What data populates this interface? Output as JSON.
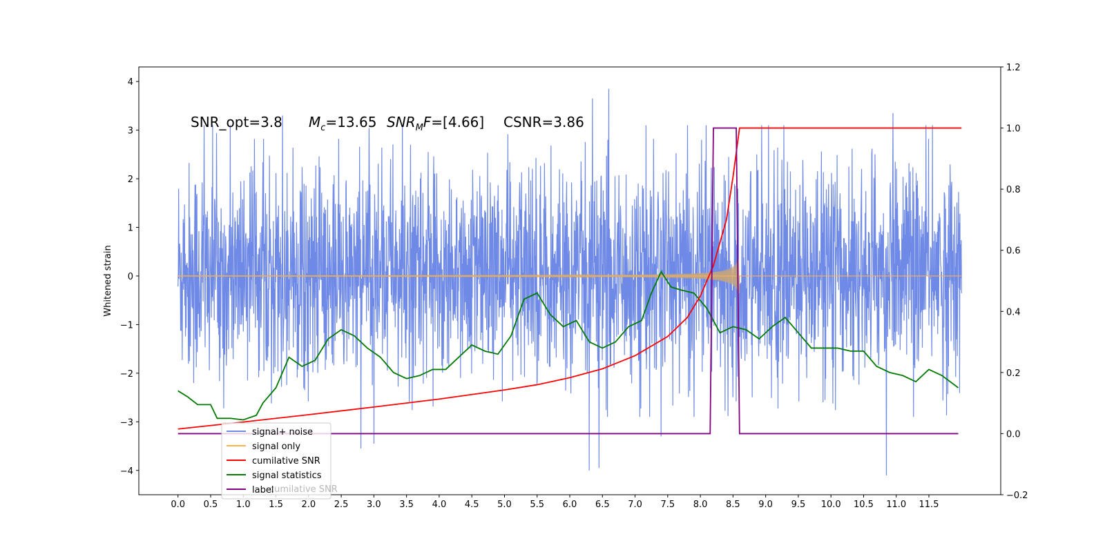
{
  "chart_data": {
    "type": "line",
    "title": "",
    "xlabel": "",
    "ylabel": "Whitened strain",
    "xlim": [
      -0.6,
      12.6
    ],
    "ylim": [
      -4.5,
      4.3
    ],
    "y2lim": [
      -0.2,
      1.2
    ],
    "grid": false,
    "legend_position": "lower-left",
    "x_ticks": [
      "0.0",
      "0.5",
      "1.0",
      "1.5",
      "2.0",
      "2.5",
      "3.0",
      "3.5",
      "4.0",
      "4.5",
      "5.0",
      "5.5",
      "6.0",
      "6.5",
      "7.0",
      "7.5",
      "8.0",
      "8.5",
      "9.0",
      "9.5",
      "10.0",
      "10.5",
      "11.0",
      "11.5"
    ],
    "y_ticks": [
      "4",
      "3",
      "2",
      "1",
      "0",
      "−1",
      "−2",
      "−3",
      "−4"
    ],
    "y2_ticks": [
      "1.2",
      "1.0",
      "0.8",
      "0.6",
      "0.4",
      "0.2",
      "0.0",
      "−0.2"
    ],
    "annotations": {
      "snr_opt": "SNR_opt=3.8",
      "mc_symbol": "M",
      "mc_sub": "c",
      "mc_value": "=13.65",
      "snrmf_symbol": "SNR",
      "snrmf_sub": "M",
      "snrmf_f": "F",
      "snrmf_value": "=[4.66]",
      "csnr": "CSNR=3.86"
    },
    "legend": {
      "entries": [
        "signal+ noise",
        "signal only",
        "cumilative SNR",
        "signal statistics",
        "label"
      ],
      "ghost_text": "cumilative SNR"
    },
    "colors": {
      "signal_noise": "#6f8ae6",
      "signal_only": "#ffb347",
      "cumulative_snr": "#ff0000",
      "signal_statistics": "#007a00",
      "label": "#800080"
    },
    "series": [
      {
        "name": "signal+ noise",
        "axis": "left",
        "kind": "noise_band",
        "x_range": [
          0.0,
          12.0
        ],
        "typical_envelope": [
          -2.0,
          2.3
        ],
        "spikes": [
          [
            0.4,
            3.1
          ],
          [
            1.6,
            3.3
          ],
          [
            2.8,
            -3.55
          ],
          [
            3.0,
            -3.45
          ],
          [
            6.3,
            -4.0
          ],
          [
            6.45,
            -3.95
          ],
          [
            6.6,
            3.85
          ],
          [
            6.35,
            3.65
          ],
          [
            7.4,
            -3.3
          ],
          [
            10.85,
            -4.1
          ],
          [
            10.95,
            3.35
          ]
        ]
      },
      {
        "name": "signal only",
        "axis": "left",
        "kind": "chirp",
        "x_range": [
          0.0,
          8.6
        ],
        "max_amplitude": 0.4
      },
      {
        "name": "cumilative SNR",
        "axis": "right",
        "x": [
          0.0,
          1.0,
          2.0,
          3.0,
          4.0,
          5.0,
          5.5,
          6.0,
          6.5,
          7.0,
          7.5,
          7.8,
          8.0,
          8.2,
          8.4,
          8.5,
          8.6,
          9.0,
          10.0,
          11.0,
          12.0
        ],
        "y": [
          0.015,
          0.038,
          0.062,
          0.087,
          0.113,
          0.143,
          0.16,
          0.183,
          0.212,
          0.255,
          0.318,
          0.38,
          0.45,
          0.55,
          0.7,
          0.84,
          1.0,
          1.0,
          1.0,
          1.0,
          1.0
        ]
      },
      {
        "name": "signal statistics",
        "axis": "right",
        "x": [
          0.0,
          0.15,
          0.3,
          0.5,
          0.6,
          0.8,
          1.0,
          1.2,
          1.3,
          1.5,
          1.7,
          1.9,
          2.1,
          2.3,
          2.5,
          2.7,
          2.9,
          3.1,
          3.3,
          3.5,
          3.7,
          3.9,
          4.1,
          4.3,
          4.5,
          4.7,
          4.9,
          5.1,
          5.3,
          5.5,
          5.7,
          5.9,
          6.1,
          6.3,
          6.5,
          6.7,
          6.9,
          7.1,
          7.25,
          7.4,
          7.55,
          7.7,
          7.9,
          8.1,
          8.3,
          8.5,
          8.7,
          8.9,
          9.1,
          9.3,
          9.5,
          9.7,
          9.9,
          10.1,
          10.3,
          10.5,
          10.7,
          10.9,
          11.1,
          11.3,
          11.5,
          11.7,
          11.95
        ],
        "y": [
          0.14,
          0.12,
          0.095,
          0.095,
          0.05,
          0.05,
          0.045,
          0.06,
          0.1,
          0.15,
          0.25,
          0.22,
          0.24,
          0.31,
          0.34,
          0.32,
          0.28,
          0.25,
          0.2,
          0.18,
          0.19,
          0.21,
          0.21,
          0.25,
          0.29,
          0.27,
          0.26,
          0.32,
          0.44,
          0.46,
          0.39,
          0.35,
          0.37,
          0.3,
          0.28,
          0.3,
          0.35,
          0.37,
          0.46,
          0.53,
          0.48,
          0.47,
          0.46,
          0.41,
          0.33,
          0.35,
          0.34,
          0.31,
          0.35,
          0.38,
          0.33,
          0.28,
          0.28,
          0.28,
          0.27,
          0.27,
          0.22,
          0.2,
          0.19,
          0.17,
          0.21,
          0.19,
          0.15
        ]
      },
      {
        "name": "label",
        "axis": "right",
        "x": [
          0.0,
          8.15,
          8.2,
          8.55,
          8.6,
          11.95
        ],
        "y": [
          0.0,
          0.0,
          1.0,
          1.0,
          0.0,
          0.0
        ]
      }
    ]
  }
}
